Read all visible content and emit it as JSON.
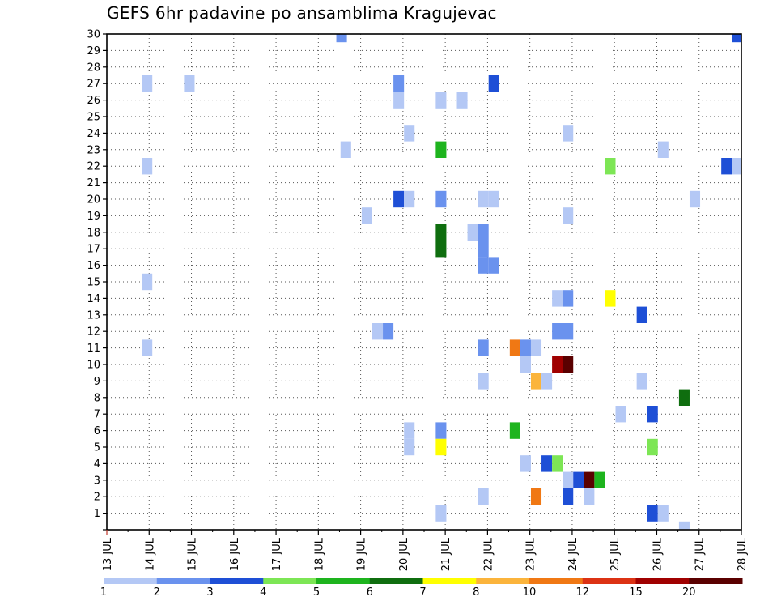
{
  "chart_data": {
    "type": "heatmap",
    "title": "GEFS 6hr padavine po ansamblima Kragujevac",
    "x_ticks": [
      "13 JUL",
      "14 JUL",
      "15 JUL",
      "16 JUL",
      "17 JUL",
      "18 JUL",
      "19 JUL",
      "20 JUL",
      "21 JUL",
      "22 JUL",
      "23 JUL",
      "24 JUL",
      "25 JUL",
      "26 JUL",
      "27 JUL",
      "28 JUL"
    ],
    "x_range_days": [
      13,
      28
    ],
    "y_ticks": [
      1,
      2,
      3,
      4,
      5,
      6,
      7,
      8,
      9,
      10,
      11,
      12,
      13,
      14,
      15,
      16,
      17,
      18,
      19,
      20,
      21,
      22,
      23,
      24,
      25,
      26,
      27,
      28,
      29,
      30
    ],
    "y_range": [
      0,
      30
    ],
    "grid": true,
    "legend": {
      "placement": "bottom",
      "colors": [
        "#b4c8f5",
        "#6a92ee",
        "#1e4fd6",
        "#7de655",
        "#1eb41e",
        "#0f6e0f",
        "#ffff00",
        "#fbb43c",
        "#f07814",
        "#dc3214",
        "#a00000",
        "#5a0000"
      ],
      "labels": [
        "1",
        "2",
        "3",
        "4",
        "5",
        "6",
        "7",
        "8",
        "10",
        "12",
        "15",
        "20"
      ]
    },
    "cells": [
      {
        "t": 18.55,
        "m": 30,
        "c": 1
      },
      {
        "t": 27.9,
        "m": 30,
        "c": 2
      },
      {
        "t": 13.95,
        "m": 27,
        "c": 0
      },
      {
        "t": 14.95,
        "m": 27,
        "c": 0
      },
      {
        "t": 19.9,
        "m": 27,
        "c": 1
      },
      {
        "t": 22.15,
        "m": 27,
        "c": 2
      },
      {
        "t": 19.9,
        "m": 26,
        "c": 0
      },
      {
        "t": 20.9,
        "m": 26,
        "c": 0
      },
      {
        "t": 21.4,
        "m": 26,
        "c": 0
      },
      {
        "t": 20.15,
        "m": 24,
        "c": 0
      },
      {
        "t": 23.9,
        "m": 24,
        "c": 0
      },
      {
        "t": 18.65,
        "m": 23,
        "c": 0
      },
      {
        "t": 20.9,
        "m": 23,
        "c": 4
      },
      {
        "t": 26.15,
        "m": 23,
        "c": 0
      },
      {
        "t": 13.95,
        "m": 22,
        "c": 0
      },
      {
        "t": 24.9,
        "m": 22,
        "c": 3
      },
      {
        "t": 27.65,
        "m": 22,
        "c": 2
      },
      {
        "t": 27.9,
        "m": 22,
        "c": 0
      },
      {
        "t": 19.9,
        "m": 20,
        "c": 2
      },
      {
        "t": 20.15,
        "m": 20,
        "c": 0
      },
      {
        "t": 20.9,
        "m": 20,
        "c": 1
      },
      {
        "t": 21.9,
        "m": 20,
        "c": 0
      },
      {
        "t": 22.15,
        "m": 20,
        "c": 0
      },
      {
        "t": 26.9,
        "m": 20,
        "c": 0
      },
      {
        "t": 19.15,
        "m": 19,
        "c": 0
      },
      {
        "t": 23.9,
        "m": 19,
        "c": 0
      },
      {
        "t": 20.9,
        "m": 18,
        "c": 5
      },
      {
        "t": 21.65,
        "m": 18,
        "c": 0
      },
      {
        "t": 21.9,
        "m": 18,
        "c": 1
      },
      {
        "t": 20.9,
        "m": 17,
        "c": 5
      },
      {
        "t": 21.9,
        "m": 17,
        "c": 1
      },
      {
        "t": 21.9,
        "m": 16,
        "c": 1
      },
      {
        "t": 22.15,
        "m": 16,
        "c": 1
      },
      {
        "t": 13.95,
        "m": 15,
        "c": 0
      },
      {
        "t": 23.65,
        "m": 14,
        "c": 0
      },
      {
        "t": 23.9,
        "m": 14,
        "c": 1
      },
      {
        "t": 24.9,
        "m": 14,
        "c": 6
      },
      {
        "t": 25.65,
        "m": 13,
        "c": 2
      },
      {
        "t": 19.4,
        "m": 12,
        "c": 0
      },
      {
        "t": 19.65,
        "m": 12,
        "c": 1
      },
      {
        "t": 23.65,
        "m": 12,
        "c": 1
      },
      {
        "t": 23.9,
        "m": 12,
        "c": 1
      },
      {
        "t": 13.95,
        "m": 11,
        "c": 0
      },
      {
        "t": 21.9,
        "m": 11,
        "c": 1
      },
      {
        "t": 22.65,
        "m": 11,
        "c": 8
      },
      {
        "t": 22.9,
        "m": 11,
        "c": 1
      },
      {
        "t": 23.15,
        "m": 11,
        "c": 0
      },
      {
        "t": 22.9,
        "m": 10,
        "c": 0
      },
      {
        "t": 23.65,
        "m": 10,
        "c": 10
      },
      {
        "t": 23.9,
        "m": 10,
        "c": 11
      },
      {
        "t": 21.9,
        "m": 9,
        "c": 0
      },
      {
        "t": 23.15,
        "m": 9,
        "c": 7
      },
      {
        "t": 23.4,
        "m": 9,
        "c": 0
      },
      {
        "t": 25.65,
        "m": 9,
        "c": 0
      },
      {
        "t": 26.65,
        "m": 8,
        "c": 5
      },
      {
        "t": 25.15,
        "m": 7,
        "c": 0
      },
      {
        "t": 25.9,
        "m": 7,
        "c": 2
      },
      {
        "t": 20.15,
        "m": 6,
        "c": 0
      },
      {
        "t": 20.9,
        "m": 6,
        "c": 1
      },
      {
        "t": 22.65,
        "m": 6,
        "c": 4
      },
      {
        "t": 20.15,
        "m": 5,
        "c": 0
      },
      {
        "t": 20.9,
        "m": 5,
        "c": 6
      },
      {
        "t": 25.9,
        "m": 5,
        "c": 3
      },
      {
        "t": 22.9,
        "m": 4,
        "c": 0
      },
      {
        "t": 23.4,
        "m": 4,
        "c": 2
      },
      {
        "t": 23.65,
        "m": 4,
        "c": 3
      },
      {
        "t": 23.9,
        "m": 3,
        "c": 0
      },
      {
        "t": 24.15,
        "m": 3,
        "c": 2
      },
      {
        "t": 24.4,
        "m": 3,
        "c": 11
      },
      {
        "t": 24.65,
        "m": 3,
        "c": 4
      },
      {
        "t": 21.9,
        "m": 2,
        "c": 0
      },
      {
        "t": 23.15,
        "m": 2,
        "c": 8
      },
      {
        "t": 23.9,
        "m": 2,
        "c": 2
      },
      {
        "t": 24.4,
        "m": 2,
        "c": 0
      },
      {
        "t": 20.9,
        "m": 1,
        "c": 0
      },
      {
        "t": 25.9,
        "m": 1,
        "c": 2
      },
      {
        "t": 26.15,
        "m": 1,
        "c": 0
      },
      {
        "t": 26.65,
        "m": 0,
        "c": 0
      }
    ]
  }
}
